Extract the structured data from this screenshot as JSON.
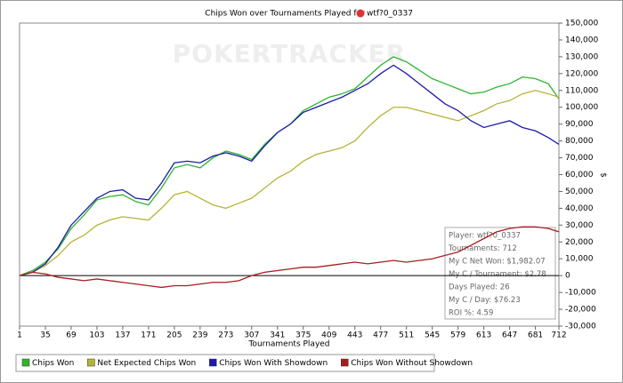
{
  "chart_data": {
    "type": "line",
    "title": "Chips Won over Tournaments Played for",
    "player": "wtf?0_0337",
    "watermark": "POKERTRACKER",
    "xlabel": "Tournaments Played",
    "ylabel": "$",
    "x": [
      1,
      18,
      35,
      52,
      69,
      86,
      103,
      120,
      137,
      154,
      171,
      188,
      205,
      222,
      239,
      256,
      273,
      290,
      307,
      324,
      341,
      358,
      375,
      392,
      409,
      426,
      443,
      460,
      477,
      494,
      511,
      528,
      545,
      562,
      579,
      596,
      613,
      630,
      647,
      664,
      681,
      698,
      712
    ],
    "xlim": [
      1,
      712
    ],
    "xticks": [
      1,
      35,
      69,
      103,
      137,
      171,
      205,
      239,
      273,
      307,
      341,
      375,
      409,
      443,
      477,
      511,
      545,
      579,
      613,
      647,
      681,
      712
    ],
    "ylim": [
      -30000,
      150000
    ],
    "yticks": [
      {
        "value": -30000,
        "label": "-30,000"
      },
      {
        "value": -20000,
        "label": "-20,000"
      },
      {
        "value": -10000,
        "label": "-10,000"
      },
      0,
      {
        "value": 10000,
        "label": "10,000"
      },
      {
        "value": 20000,
        "label": "20,000"
      },
      {
        "value": 30000,
        "label": "30,000"
      },
      {
        "value": 40000,
        "label": "40,000"
      },
      {
        "value": 50000,
        "label": "50,000"
      },
      {
        "value": 60000,
        "label": "60,000"
      },
      {
        "value": 70000,
        "label": "70,000"
      },
      {
        "value": 80000,
        "label": "80,000"
      },
      {
        "value": 90000,
        "label": "90,000"
      },
      {
        "value": 100000,
        "label": "100,000"
      },
      {
        "value": 110000,
        "label": "110,000"
      },
      {
        "value": 120000,
        "label": "120,000"
      },
      {
        "value": 130000,
        "label": "130,000"
      },
      {
        "value": 140000,
        "label": "140,000"
      },
      {
        "value": 150000,
        "label": "150,000"
      }
    ],
    "zero_line": true,
    "series": [
      {
        "name": "Chips Won",
        "color": "#2fb52f",
        "values": [
          0,
          3000,
          8000,
          16000,
          28000,
          36000,
          45000,
          47000,
          48000,
          44000,
          42000,
          52000,
          64000,
          66000,
          64000,
          70000,
          74000,
          72000,
          69000,
          78000,
          85000,
          90000,
          98000,
          102000,
          106000,
          108000,
          111000,
          118000,
          125000,
          130000,
          127000,
          122000,
          117000,
          114000,
          111000,
          108000,
          109000,
          112000,
          114000,
          118000,
          117000,
          114000,
          105000
        ]
      },
      {
        "name": "Net Expected Chips Won",
        "color": "#b4b437",
        "values": [
          0,
          2000,
          6000,
          12000,
          20000,
          24000,
          30000,
          33000,
          35000,
          34000,
          33000,
          40000,
          48000,
          50000,
          46000,
          42000,
          40000,
          43000,
          46000,
          52000,
          58000,
          62000,
          68000,
          72000,
          74000,
          76000,
          80000,
          88000,
          95000,
          100000,
          100000,
          98000,
          96000,
          94000,
          92000,
          95000,
          98000,
          102000,
          104000,
          108000,
          110000,
          108000,
          106000
        ]
      },
      {
        "name": "Chips Won With Showdown",
        "color": "#1c1ca8",
        "values": [
          0,
          2000,
          7000,
          17000,
          30000,
          38000,
          46000,
          50000,
          51000,
          46000,
          45000,
          55000,
          67000,
          68000,
          67000,
          71000,
          73000,
          71000,
          68000,
          77000,
          85000,
          90000,
          97000,
          100000,
          103000,
          106000,
          110000,
          114000,
          120000,
          125000,
          120000,
          114000,
          108000,
          102000,
          98000,
          92000,
          88000,
          90000,
          92000,
          88000,
          86000,
          82000,
          78000
        ]
      },
      {
        "name": "Chips Won Without Showdown",
        "color": "#a51e1e",
        "values": [
          0,
          2000,
          1000,
          -1000,
          -2000,
          -3000,
          -2000,
          -3000,
          -4000,
          -5000,
          -6000,
          -7000,
          -6000,
          -6000,
          -5000,
          -4000,
          -4000,
          -3000,
          0,
          2000,
          3000,
          4000,
          5000,
          5000,
          6000,
          7000,
          8000,
          7000,
          8000,
          9000,
          8000,
          9000,
          10000,
          12000,
          14000,
          18000,
          22000,
          26000,
          28000,
          29000,
          29000,
          28000,
          26000
        ]
      }
    ],
    "tooltip": [
      "Player: wtf?0_0337",
      "Tournaments: 712",
      "My C Net Won: $1,982.07",
      "My C / Tournament: $2.78",
      "Days Played: 26",
      "My C / Day: $76.23",
      "ROI %: 4.59"
    ]
  }
}
